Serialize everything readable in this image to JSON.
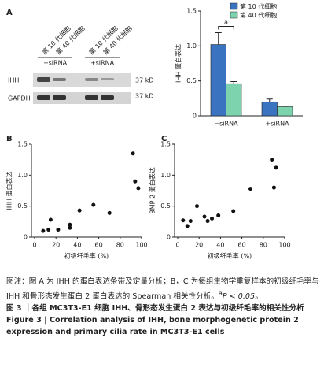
{
  "panel_labels": [
    "A",
    "B",
    "C"
  ],
  "blot": {
    "lanes": [
      "第 10 代细胞",
      "第 40 代细胞",
      "第 10 代细胞",
      "第 40 代细胞"
    ],
    "groups": [
      "−siRNA",
      "+siRNA"
    ],
    "rows": [
      "IHH",
      "GAPDH"
    ],
    "sizes": [
      "37 kD",
      "37 kD"
    ]
  },
  "chart_data": [
    {
      "type": "bar",
      "ylabel": "IHH 蛋白表达",
      "categories": [
        "−siRNA",
        "+siRNA"
      ],
      "series": [
        {
          "name": "第 10 代细胞",
          "color": "#3a73c0",
          "values": [
            1.02,
            0.2
          ],
          "errors": [
            0.17,
            0.04
          ]
        },
        {
          "name": "第 40 代细胞",
          "color": "#7dd3ae",
          "values": [
            0.46,
            0.13
          ],
          "errors": [
            0.03,
            0.01
          ]
        }
      ],
      "ylim": [
        0,
        1.5
      ],
      "yticks": [
        0,
        0.5,
        {
          "value": 1,
          "label": "1.0"
        },
        1.5
      ],
      "legend": "upper right",
      "annotation": "a"
    },
    {
      "type": "scatter",
      "xlabel": "初级纤毛率 (%)",
      "ylabel": "IHH 蛋白表达",
      "color": "#111",
      "x": [
        8,
        13,
        15,
        22,
        33,
        33,
        42,
        55,
        70,
        92,
        94,
        97
      ],
      "values": [
        0.1,
        0.12,
        0.28,
        0.12,
        0.2,
        0.15,
        0.43,
        0.52,
        0.39,
        1.35,
        0.9,
        0.79
      ],
      "xlim": [
        0,
        100
      ],
      "xticks": [
        0,
        20,
        40,
        60,
        80,
        100
      ],
      "ylim": [
        0,
        1.5
      ],
      "yticks": [
        0,
        0.5,
        {
          "value": 1,
          "label": "1.0"
        },
        1.5
      ]
    },
    {
      "type": "scatter",
      "xlabel": "初级纤毛率 (%)",
      "ylabel": "BMP-2 蛋白表达",
      "color": "#111",
      "x": [
        5,
        9,
        12,
        18,
        25,
        28,
        32,
        38,
        52,
        68,
        88,
        90,
        92
      ],
      "values": [
        0.27,
        0.18,
        0.26,
        0.5,
        0.33,
        0.26,
        0.3,
        0.35,
        0.42,
        0.78,
        1.25,
        0.8,
        1.12
      ],
      "xlim": [
        0,
        100
      ],
      "xticks": [
        0,
        20,
        40,
        60,
        80,
        100
      ],
      "ylim": [
        0,
        1.5
      ],
      "yticks": [
        0,
        0.5,
        {
          "value": 1,
          "label": "1.0"
        },
        1.5
      ]
    }
  ],
  "caption": {
    "note": "图注：图 A 为 IHH 的蛋白表达条带及定量分析；B，C 为每组生物学重复样本的初级纤毛率与 IHH 和骨形态发生蛋白 2 蛋白表达的 Spearman 相关性分析。",
    "sig_mark": "a",
    "sig_text": "P < 0.05。",
    "title_cn": "图 3 ｜各组 MC3T3-E1 细胞 IHH、骨形态发生蛋白 2 表达与初级纤毛率的相关性分析",
    "title_en": "Figure 3  |  Correlation analysis of IHH, bone morphogenetic protein 2 expression and primary cilia rate in MC3T3-E1 cells"
  }
}
